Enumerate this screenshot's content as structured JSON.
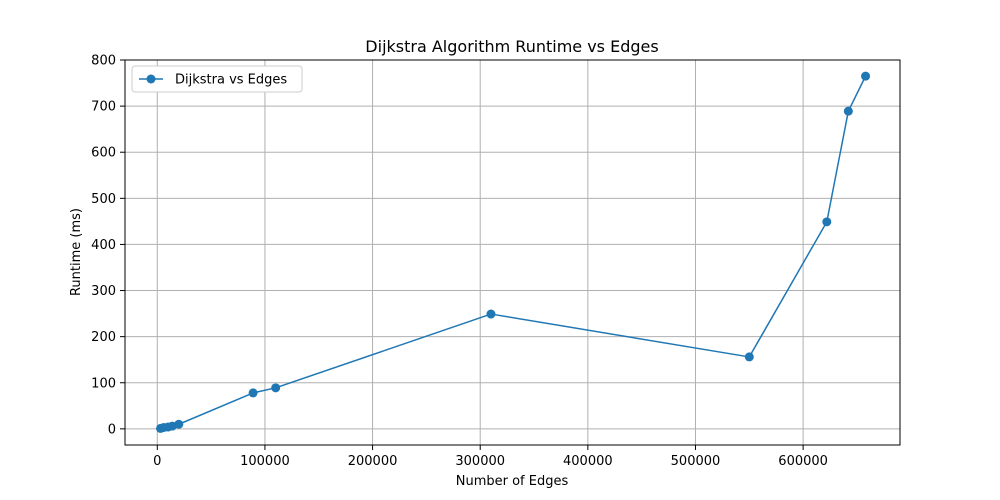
{
  "chart_data": {
    "type": "line",
    "title": "Dijkstra Algorithm Runtime vs Edges",
    "xlabel": "Number of Edges",
    "ylabel": "Runtime (ms)",
    "xlim": [
      -30000,
      690000
    ],
    "ylim": [
      -35,
      800
    ],
    "xticks": [
      0,
      100000,
      200000,
      300000,
      400000,
      500000,
      600000
    ],
    "xtick_labels": [
      "0",
      "100000",
      "200000",
      "300000",
      "400000",
      "500000",
      "600000"
    ],
    "yticks": [
      0,
      100,
      200,
      300,
      400,
      500,
      600,
      700,
      800
    ],
    "ytick_labels": [
      "0",
      "100",
      "200",
      "300",
      "400",
      "500",
      "600",
      "700",
      "800"
    ],
    "grid": true,
    "legend_position": "upper-left",
    "series": [
      {
        "name": "Dijkstra vs Edges",
        "color": "#1f77b4",
        "marker": "circle",
        "x": [
          3000,
          6000,
          10000,
          14000,
          20000,
          89000,
          110000,
          310000,
          550000,
          622000,
          642000,
          658000
        ],
        "y": [
          1,
          3,
          4,
          6,
          10,
          78,
          89,
          249,
          156,
          449,
          689,
          765
        ]
      }
    ]
  }
}
